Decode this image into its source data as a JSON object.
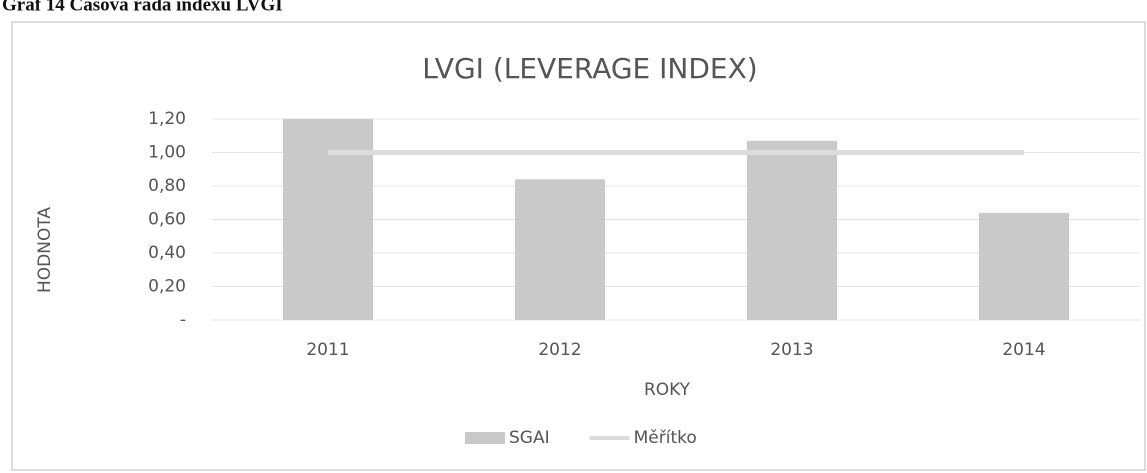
{
  "caption": "Graf 14 Časová řada indexu LVGI",
  "chart_data": {
    "type": "bar",
    "title": "LVGI (LEVERAGE INDEX)",
    "x_label": "ROKY",
    "y_label": "HODNOTA",
    "categories": [
      "2011",
      "2012",
      "2013",
      "2014"
    ],
    "series": [
      {
        "name": "SGAI",
        "type": "bar",
        "color": "#c9c9c9",
        "values": [
          1.2,
          0.84,
          1.07,
          0.64
        ]
      },
      {
        "name": "Měřítko",
        "type": "line",
        "color": "#dcdcdc",
        "values": [
          1.0,
          1.0,
          1.0,
          1.0
        ]
      }
    ],
    "ylim": [
      0,
      1.2
    ],
    "yticks": [
      {
        "value": 0,
        "label": "-"
      },
      {
        "value": 0.2,
        "label": "0,20"
      },
      {
        "value": 0.4,
        "label": "0,40"
      },
      {
        "value": 0.6,
        "label": "0,60"
      },
      {
        "value": 0.8,
        "label": "0,80"
      },
      {
        "value": 1.0,
        "label": "1,00"
      },
      {
        "value": 1.2,
        "label": "1,20"
      }
    ],
    "grid": true,
    "legend": "bottom"
  }
}
